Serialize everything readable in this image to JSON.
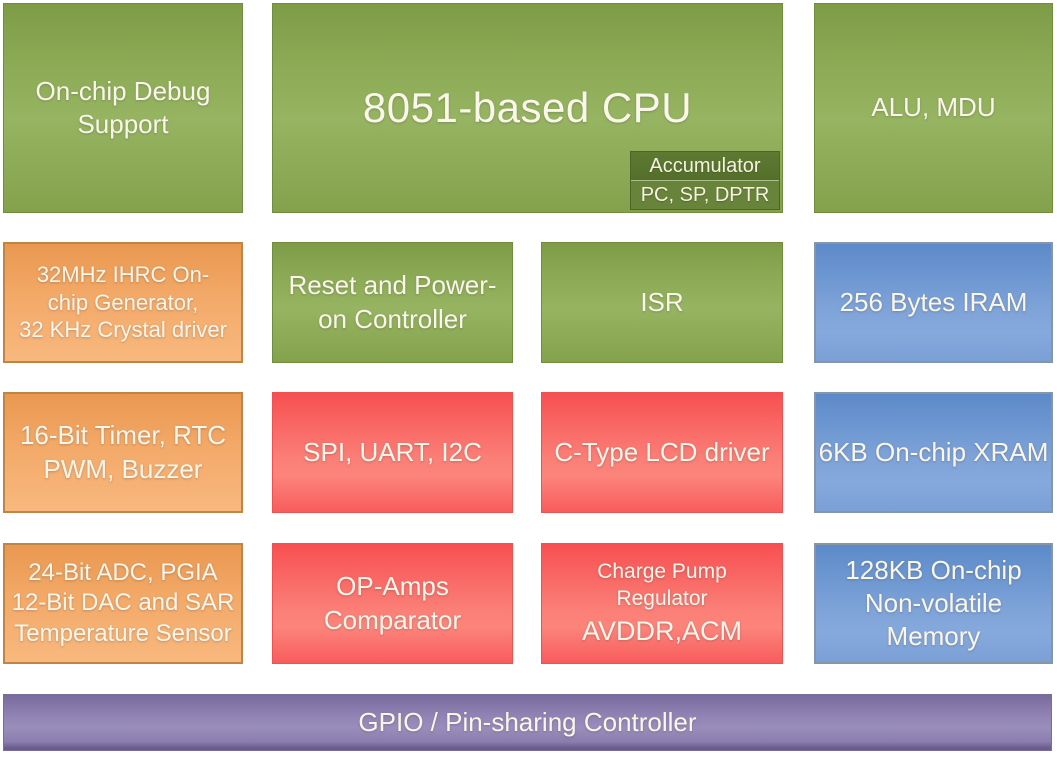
{
  "colors": {
    "green": "#8aa751",
    "orange": "#f2a763",
    "red": "#f96b66",
    "blue": "#6f99d2",
    "purple": "#8b7eae",
    "dark_green_sub": "#5a7430",
    "text": "#faf6ea"
  },
  "cpu": {
    "title": "8051-based CPU",
    "accumulator_label": "Accumulator",
    "registers_label": "PC, SP, DPTR"
  },
  "blocks": {
    "debug_support": {
      "label": "On-chip Debug\nSupport",
      "color": "green"
    },
    "alu_mdu": {
      "label": "ALU, MDU",
      "color": "green"
    },
    "clock_generator": {
      "label": "32MHz IHRC On-\nchip Generator,\n32 KHz Crystal driver",
      "color": "orange"
    },
    "reset_controller": {
      "label": "Reset and Power-\non Controller",
      "color": "green"
    },
    "isr": {
      "label": "ISR",
      "color": "green"
    },
    "iram": {
      "label": "256 Bytes IRAM",
      "color": "blue"
    },
    "timer": {
      "label": "16-Bit Timer, RTC\nPWM, Buzzer",
      "color": "orange"
    },
    "serial_interfaces": {
      "label": "SPI, UART, I2C",
      "color": "red"
    },
    "lcd_driver": {
      "label": "C-Type LCD driver",
      "color": "red"
    },
    "xram": {
      "label": "6KB On-chip XRAM",
      "color": "blue"
    },
    "analog_frontend": {
      "label": "24-Bit ADC, PGIA\n12-Bit DAC and SAR\nTemperature Sensor",
      "color": "orange"
    },
    "opamps": {
      "label": "OP-Amps\nComparator",
      "color": "red"
    },
    "charge_pump": {
      "label_small": "Charge Pump\nRegulator",
      "label_large": "AVDDR,ACM",
      "color": "red"
    },
    "nonvolatile_memory": {
      "label": "128KB On-chip\nNon-volatile\nMemory",
      "color": "blue"
    },
    "gpio": {
      "label": "GPIO / Pin-sharing Controller",
      "color": "purple"
    }
  }
}
